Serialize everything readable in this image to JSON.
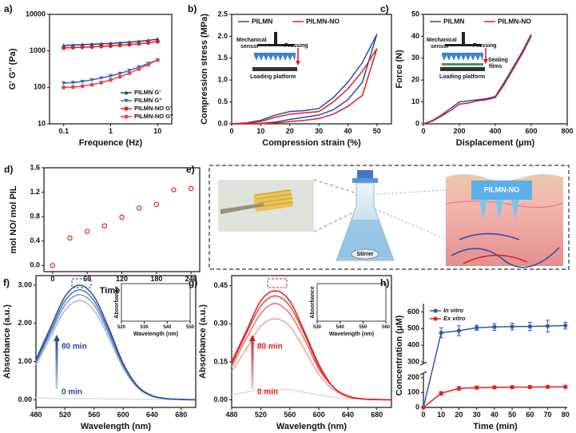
{
  "chart_data": [
    {
      "type": "line",
      "panel_label": "a)",
      "xlabel": "Frequence (Hz)",
      "ylabel": "G' G'' (Pa)",
      "xscale": "log",
      "yscale": "log",
      "xlim": [
        0.05,
        20
      ],
      "xticks": [
        0.1,
        1,
        10
      ],
      "ylim": [
        10,
        10000
      ],
      "yticks": [
        10,
        100,
        1000,
        10000
      ],
      "x": [
        0.1,
        0.158,
        0.251,
        0.398,
        0.631,
        1,
        1.58,
        2.51,
        3.98,
        6.31,
        10
      ],
      "series": [
        {
          "name": "PILMN G'",
          "color": "#1f3f8f",
          "marker": "triangle-up",
          "values": [
            1400,
            1440,
            1480,
            1520,
            1560,
            1600,
            1660,
            1730,
            1820,
            1930,
            2100
          ]
        },
        {
          "name": "PILMN G''",
          "color": "#3a62c0",
          "marker": "triangle-down",
          "values": [
            130,
            135,
            145,
            160,
            180,
            205,
            240,
            290,
            360,
            450,
            560
          ]
        },
        {
          "name": "PILMN-NO G'",
          "color": "#e02020",
          "marker": "circle",
          "values": [
            1200,
            1230,
            1260,
            1290,
            1330,
            1370,
            1420,
            1490,
            1570,
            1670,
            1800
          ]
        },
        {
          "name": "PILMN-NO G''",
          "color": "#e84a4a",
          "marker": "circle",
          "values": [
            100,
            102,
            108,
            118,
            135,
            160,
            195,
            245,
            320,
            420,
            560
          ]
        }
      ],
      "legend": "lower right"
    },
    {
      "type": "line",
      "panel_label": "b)",
      "xlabel": "Compression strain (%)",
      "ylabel": "Compression stress (MPa)",
      "xlim": [
        0,
        55
      ],
      "xticks": [
        0,
        10,
        20,
        30,
        40,
        50
      ],
      "ylim": [
        0,
        2.5
      ],
      "yticks": [
        {
          "value": 0,
          "label": "0.0"
        },
        0.5,
        {
          "value": 1,
          "label": "1.0"
        },
        1.5,
        {
          "value": 2,
          "label": "2.0"
        },
        2.5
      ],
      "x": [
        0,
        5,
        10,
        15,
        20,
        25,
        30,
        35,
        40,
        45,
        50,
        45,
        40,
        35,
        30,
        25,
        20,
        15,
        10,
        5,
        0
      ],
      "series": [
        {
          "name": "PILMN",
          "color": "#1f4fa3",
          "values": [
            0,
            0.02,
            0.08,
            0.2,
            0.28,
            0.3,
            0.35,
            0.6,
            0.95,
            1.4,
            2.05,
            0.95,
            0.55,
            0.32,
            0.2,
            0.15,
            0.1,
            0.04,
            0.01,
            0,
            0
          ]
        },
        {
          "name": "PILMN-NO",
          "color": "#e02020",
          "values": [
            0,
            0.01,
            0.05,
            0.15,
            0.22,
            0.25,
            0.28,
            0.5,
            0.8,
            1.2,
            1.72,
            0.65,
            0.4,
            0.22,
            0.12,
            0.08,
            0.05,
            0.02,
            0,
            0,
            0
          ]
        }
      ],
      "legend": "upper left",
      "legend_ncol": 2,
      "sketch": {
        "sensor": [
          "Mechanical",
          "sensor"
        ],
        "action": "Pressing",
        "base": "Loading platform"
      }
    },
    {
      "type": "line",
      "panel_label": "c)",
      "xlabel": "Displacement (μm)",
      "ylabel": "Force (N)",
      "xlim": [
        0,
        800
      ],
      "xticks": [
        0,
        200,
        400,
        600,
        800
      ],
      "ylim": [
        0,
        50
      ],
      "yticks": [
        0,
        10,
        20,
        30,
        40,
        50
      ],
      "x": [
        0,
        50,
        100,
        150,
        200,
        250,
        300,
        350,
        400,
        450,
        500,
        550,
        600
      ],
      "series": [
        {
          "name": "PILMN",
          "color": "#1f4fa3",
          "values": [
            0,
            1.5,
            4,
            7,
            10,
            10.5,
            11,
            11.5,
            12.5,
            19,
            26,
            33,
            41
          ]
        },
        {
          "name": "PILMN-NO",
          "color": "#e02020",
          "values": [
            0,
            1.2,
            3.5,
            6,
            9,
            9.5,
            10.5,
            11,
            12,
            18,
            25,
            32,
            40
          ]
        }
      ],
      "legend": "upper left",
      "legend_ncol": 2,
      "sketch": {
        "sensor": [
          "Mechanical",
          "sensor"
        ],
        "action": "Pressing",
        "films": [
          "Sealing",
          "films"
        ],
        "base": "Loading platform"
      }
    },
    {
      "type": "scatter",
      "panel_label": "d)",
      "xlabel": "Time (min)",
      "ylabel": "mol NO/ mol PIL",
      "xlim": [
        -15,
        255
      ],
      "xticks": [
        0,
        60,
        120,
        180,
        240
      ],
      "ylim": [
        -0.1,
        1.6
      ],
      "yticks": [
        {
          "value": 0,
          "label": "0.0"
        },
        0.4,
        0.8,
        1.2,
        1.6
      ],
      "x": [
        0,
        30,
        60,
        90,
        120,
        150,
        180,
        210,
        240
      ],
      "values": [
        0,
        0.45,
        0.56,
        0.65,
        0.79,
        0.94,
        1.0,
        1.24,
        1.26
      ],
      "color": "#e02020",
      "marker": "circle-open"
    },
    {
      "type": "line",
      "panel_label": "f)",
      "xlabel": "Wavelength (nm)",
      "ylabel": "Absorbance (a.u.)",
      "smooth": true,
      "xlim": [
        480,
        700
      ],
      "xticks": [
        480,
        520,
        560,
        600,
        640,
        680
      ],
      "ylim": [
        -0.2,
        3.25
      ],
      "yticks": [
        {
          "value": 0,
          "label": "0.00"
        },
        {
          "value": 1,
          "label": "1.00"
        },
        {
          "value": 2,
          "label": "2.00"
        },
        {
          "value": 3,
          "label": "3.00"
        }
      ],
      "x": [
        480,
        500,
        520,
        540,
        560,
        580,
        600,
        620,
        640,
        660,
        680,
        700
      ],
      "series": [
        {
          "color": "#d9dde8",
          "values": [
            0.05,
            0.04,
            0.03,
            0.03,
            0.03,
            0.02,
            0.02,
            0.01,
            0.01,
            0.01,
            0.01,
            0.01
          ]
        },
        {
          "color": "#a9b9d8",
          "values": [
            0.91,
            1.64,
            2.34,
            2.6,
            2.34,
            1.64,
            0.83,
            0.31,
            0.09,
            0.03,
            0.01,
            0
          ]
        },
        {
          "color": "#7d95c6",
          "values": [
            0.96,
            1.73,
            2.48,
            2.75,
            2.48,
            1.73,
            0.88,
            0.33,
            0.1,
            0.03,
            0.01,
            0
          ]
        },
        {
          "color": "#4f6fb0",
          "values": [
            1.01,
            1.81,
            2.59,
            2.88,
            2.59,
            1.81,
            0.92,
            0.35,
            0.1,
            0.03,
            0.01,
            0
          ]
        },
        {
          "color": "#1f4e9a",
          "values": [
            1.05,
            1.89,
            2.7,
            3.0,
            2.7,
            1.89,
            0.96,
            0.36,
            0.11,
            0.03,
            0.01,
            0
          ]
        }
      ],
      "annotations": [
        "80 min",
        "0 min"
      ],
      "inset": {
        "xlabel": "Wavelength (nm)",
        "ylabel": "Absorbance",
        "smooth": true,
        "xlim": [
          520,
          550
        ],
        "xticks": [
          520,
          530,
          540,
          550
        ],
        "ylim": [
          2.35,
          3.1
        ],
        "x": [
          520,
          525,
          530,
          535,
          540,
          545,
          550
        ],
        "series": [
          {
            "color": "#a9b9d8",
            "values": [
              2.54,
              2.58,
              2.6,
              2.59,
              2.55,
              2.49,
              2.41
            ]
          },
          {
            "color": "#7d95c6",
            "values": [
              2.68,
              2.73,
              2.75,
              2.74,
              2.7,
              2.64,
              2.55
            ]
          },
          {
            "color": "#4f6fb0",
            "values": [
              2.81,
              2.86,
              2.88,
              2.87,
              2.83,
              2.76,
              2.67
            ]
          },
          {
            "color": "#1f4e9a",
            "values": [
              2.93,
              2.98,
              3.0,
              2.99,
              2.95,
              2.88,
              2.78
            ]
          }
        ]
      }
    },
    {
      "type": "line",
      "panel_label": "g)",
      "xlabel": "Wavelength (nm)",
      "ylabel": "Absorbance (a.u.)",
      "smooth": true,
      "xlim": [
        480,
        700
      ],
      "xticks": [
        480,
        520,
        560,
        600,
        640,
        680
      ],
      "ylim": [
        -0.03,
        0.49
      ],
      "yticks": [
        {
          "value": 0,
          "label": "0.00"
        },
        0.15,
        {
          "value": 0.3,
          "label": "0.30"
        },
        0.45
      ],
      "x": [
        480,
        500,
        520,
        540,
        560,
        580,
        600,
        620,
        640,
        660,
        680,
        700
      ],
      "series": [
        {
          "color": "#f4d0d0",
          "values": [
            0.02,
            0.03,
            0.04,
            0.04,
            0.04,
            0.03,
            0.02,
            0.01,
            0.005,
            0.002,
            0.001,
            0
          ]
        },
        {
          "color": "#f0a0a0",
          "values": [
            0.11,
            0.2,
            0.29,
            0.32,
            0.29,
            0.2,
            0.1,
            0.04,
            0.011,
            0.003,
            0.001,
            0
          ]
        },
        {
          "color": "#ea7070",
          "values": [
            0.13,
            0.24,
            0.34,
            0.38,
            0.34,
            0.24,
            0.12,
            0.05,
            0.013,
            0.004,
            0.001,
            0
          ]
        },
        {
          "color": "#e24545",
          "values": [
            0.14,
            0.26,
            0.37,
            0.41,
            0.37,
            0.26,
            0.13,
            0.05,
            0.014,
            0.004,
            0.001,
            0
          ]
        },
        {
          "color": "#d61f1f",
          "values": [
            0.15,
            0.27,
            0.39,
            0.43,
            0.39,
            0.27,
            0.14,
            0.05,
            0.015,
            0.004,
            0.001,
            0
          ]
        }
      ],
      "annotations": [
        "80 min",
        "0 min"
      ],
      "inset": {
        "xlabel": "Wavelength (nm)",
        "ylabel": "Absorbance",
        "smooth": true,
        "xlim": [
          530,
          560
        ],
        "xticks": [
          530,
          540,
          550,
          560
        ],
        "ylim": [
          0.28,
          0.45
        ],
        "x": [
          530,
          535,
          540,
          545,
          550,
          555,
          560
        ],
        "series": [
          {
            "color": "#f0a0a0",
            "values": [
              0.309,
              0.316,
              0.32,
              0.319,
              0.314,
              0.305,
              0.294
            ]
          },
          {
            "color": "#ea7070",
            "values": [
              0.367,
              0.375,
              0.38,
              0.379,
              0.373,
              0.362,
              0.349
            ]
          },
          {
            "color": "#e24545",
            "values": [
              0.396,
              0.405,
              0.41,
              0.409,
              0.402,
              0.391,
              0.377
            ]
          },
          {
            "color": "#d61f1f",
            "values": [
              0.415,
              0.425,
              0.43,
              0.429,
              0.422,
              0.41,
              0.395
            ]
          }
        ]
      }
    },
    {
      "type": "line",
      "panel_label": "h)",
      "xlabel": "Time (min)",
      "ylabel": "Concentration (μM)",
      "xlim": [
        0,
        81
      ],
      "xticks": [
        0,
        10,
        20,
        30,
        40,
        50,
        60,
        70,
        80
      ],
      "ylim": [
        0,
        650
      ],
      "ybreak": [
        230,
        290
      ],
      "yticks": [
        0,
        100,
        200,
        300,
        400,
        500,
        600
      ],
      "x": [
        0,
        10,
        20,
        30,
        40,
        50,
        60,
        70,
        80
      ],
      "series": [
        {
          "name": "In vitro",
          "color": "#2a5caa",
          "marker": "circle",
          "values": [
            0,
            475,
            487,
            505,
            510,
            512,
            513,
            515,
            518
          ],
          "errors": [
            0,
            30,
            30,
            15,
            20,
            20,
            25,
            35,
            20
          ]
        },
        {
          "name": "Ex vitro",
          "color": "#e02020",
          "marker": "circle",
          "values": [
            0,
            95,
            128,
            133,
            135,
            136,
            137,
            138,
            138
          ],
          "errors": [
            0,
            12,
            12,
            10,
            10,
            10,
            10,
            10,
            10
          ]
        }
      ],
      "legend": "upper left",
      "legend_italic": true
    }
  ],
  "diagram": {
    "panel_label": "e)",
    "patch_label": "PILMN-NO",
    "stirrer_label": "Stirrer"
  }
}
